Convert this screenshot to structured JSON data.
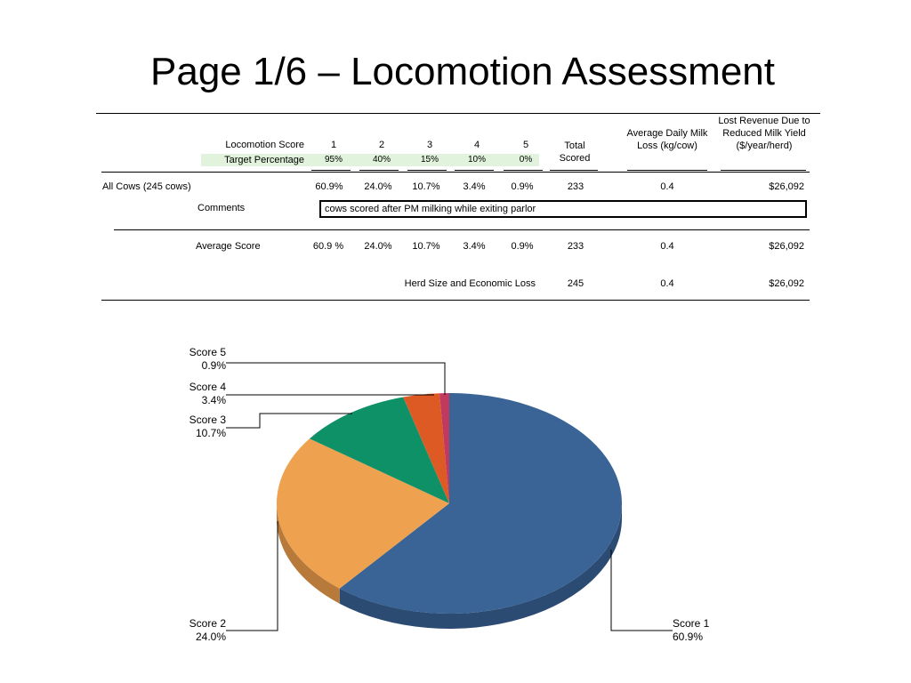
{
  "page_title": "Page 1/6 – Locomotion Assessment",
  "table": {
    "row_label_score": "Locomotion Score",
    "row_label_target": "Target Percentage",
    "scores": [
      "1",
      "2",
      "3",
      "4",
      "5"
    ],
    "targets": [
      "95%",
      "40%",
      "15%",
      "10%",
      "0%"
    ],
    "total_scored_header": "Total Scored",
    "milk_loss_header": "Average Daily Milk Loss (kg/cow)",
    "lost_revenue_header": "Lost Revenue Due to Reduced Milk Yield ($/year/herd)",
    "all_cows": {
      "label": "All Cows  (245 cows)",
      "values": [
        "60.9%",
        "24.0%",
        "10.7%",
        "3.4%",
        "0.9%"
      ],
      "total": "233",
      "milk_loss": "0.4",
      "revenue": "$26,092"
    },
    "comments_label": "Comments",
    "comment_text": "cows scored after PM milking while exiting parlor",
    "average": {
      "label": "Average Score",
      "values": [
        "60.9 %",
        "24.0%",
        "10.7%",
        "3.4%",
        "0.9%"
      ],
      "total": "233",
      "milk_loss": "0.4",
      "revenue": "$26,092"
    },
    "herd": {
      "label": "Herd Size and Economic Loss",
      "total": "245",
      "milk_loss": "0.4",
      "revenue": "$26,092"
    }
  },
  "chart_data": {
    "type": "pie",
    "title": "",
    "slices": [
      {
        "label": "Score 1",
        "value": 60.9,
        "value_label": "60.9%",
        "color": "#3a6496",
        "side": "#2b4b73"
      },
      {
        "label": "Score 2",
        "value": 24.0,
        "value_label": "24.0%",
        "color": "#eea14f",
        "side": "#b77a3a"
      },
      {
        "label": "Score 3",
        "value": 10.7,
        "value_label": "10.7%",
        "color": "#0f9168",
        "side": "#0b6a4c"
      },
      {
        "label": "Score 4",
        "value": 3.4,
        "value_label": "3.4%",
        "color": "#dd5a25",
        "side": "#a5431b"
      },
      {
        "label": "Score 5",
        "value": 0.9,
        "value_label": "0.9%",
        "color": "#c03a5f",
        "side": "#8c2a45"
      }
    ]
  }
}
